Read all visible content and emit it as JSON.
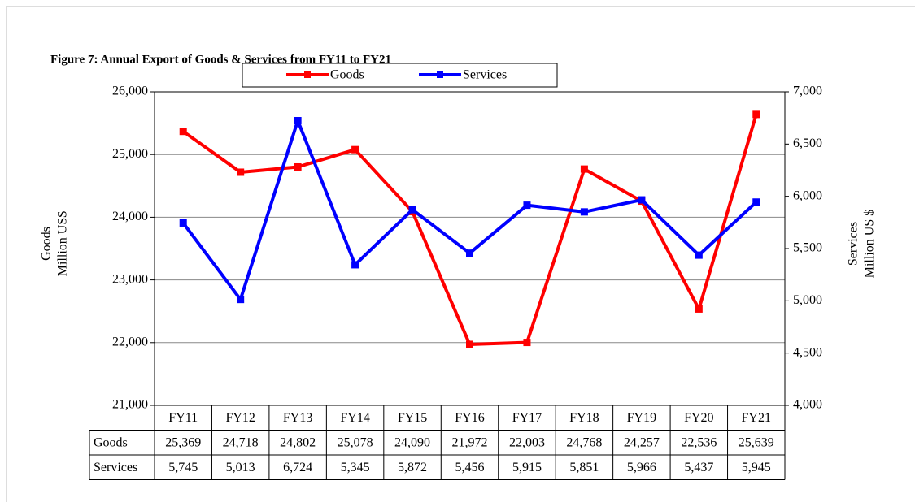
{
  "chart_data": {
    "type": "line",
    "title": "Figure 7: Annual Export of Goods & Services from FY11 to FY21",
    "categories": [
      "FY11",
      "FY12",
      "FY13",
      "FY14",
      "FY15",
      "FY16",
      "FY17",
      "FY18",
      "FY19",
      "FY20",
      "FY21"
    ],
    "series": [
      {
        "name": "Goods",
        "color": "#ff0000",
        "values": [
          25369,
          24718,
          24802,
          25078,
          24090,
          21972,
          22003,
          24768,
          24257,
          22536,
          25639
        ],
        "value_labels": [
          "25,369",
          "24,718",
          "24,802",
          "25,078",
          "24,090",
          "21,972",
          "22,003",
          "24,768",
          "24,257",
          "22,536",
          "25,639"
        ]
      },
      {
        "name": "Services",
        "color": "#0000ff",
        "axis": "y2",
        "values": [
          5745,
          5013,
          6724,
          5345,
          5872,
          5456,
          5915,
          5851,
          5966,
          5437,
          5945
        ],
        "value_labels": [
          "5,745",
          "5,013",
          "6,724",
          "5,345",
          "5,872",
          "5,456",
          "5,915",
          "5,851",
          "5,966",
          "5,437",
          "5,945"
        ]
      }
    ],
    "ylabel": [
      "Goods",
      "Million US$"
    ],
    "y2label": [
      "Services",
      "Million US $"
    ],
    "ylim": [
      21000,
      26000
    ],
    "yticks": [
      {
        "value": 21000,
        "label": "21,000"
      },
      {
        "value": 22000,
        "label": "22,000"
      },
      {
        "value": 23000,
        "label": "23,000"
      },
      {
        "value": 24000,
        "label": "24,000"
      },
      {
        "value": 25000,
        "label": "25,000"
      },
      {
        "value": 26000,
        "label": "26,000"
      }
    ],
    "y2lim": [
      4000,
      7000
    ],
    "y2ticks": [
      {
        "value": 4000,
        "label": "4,000"
      },
      {
        "value": 4500,
        "label": "4,500"
      },
      {
        "value": 5000,
        "label": "5,000"
      },
      {
        "value": 5500,
        "label": "5,500"
      },
      {
        "value": 6000,
        "label": "6,000"
      },
      {
        "value": 6500,
        "label": "6,500"
      },
      {
        "value": 7000,
        "label": "7,000"
      }
    ],
    "grid": true,
    "legend": "top"
  }
}
